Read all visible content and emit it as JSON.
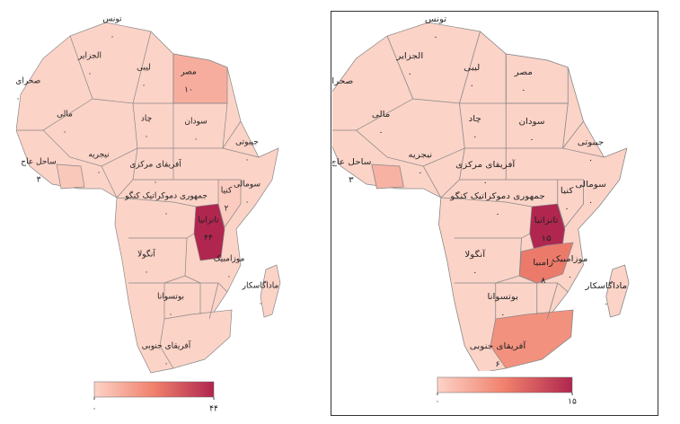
{
  "maps": [
    {
      "regions": [
        {
          "name": "تونس",
          "value": 0,
          "value_label": "۰"
        },
        {
          "name": "الجزایر",
          "value": 0,
          "value_label": "۰"
        },
        {
          "name": "لیبی",
          "value": 0,
          "value_label": "۰"
        },
        {
          "name": "مصر",
          "value": 10,
          "value_label": "۱۰"
        },
        {
          "name": "صحرای غربی",
          "value": 0,
          "value_label": "۰"
        },
        {
          "name": "مالی",
          "value": 0,
          "value_label": "۰"
        },
        {
          "name": "چاد",
          "value": 0,
          "value_label": "۰"
        },
        {
          "name": "سودان",
          "value": 0,
          "value_label": "۰"
        },
        {
          "name": "جیبوتی",
          "value": 0,
          "value_label": "۰"
        },
        {
          "name": "نیجریه",
          "value": 0,
          "value_label": "۰"
        },
        {
          "name": "ساحل عاج",
          "value": 3,
          "value_label": "۳"
        },
        {
          "name": "آفریقای مرکزی",
          "value": 0,
          "value_label": "۰"
        },
        {
          "name": "سومالی",
          "value": 0,
          "value_label": "۰"
        },
        {
          "name": "کنیا",
          "value": 2,
          "value_label": "۲"
        },
        {
          "name": "جمهوری دموکراتیک کنگو",
          "value": 0,
          "value_label": "۰"
        },
        {
          "name": "تانزانیا",
          "value": 44,
          "value_label": "۴۴"
        },
        {
          "name": "آنگولا",
          "value": 0,
          "value_label": "۰"
        },
        {
          "name": "موزامبیک",
          "value": 0,
          "value_label": "۰"
        },
        {
          "name": "ماداگاسکار",
          "value": 0,
          "value_label": "۰"
        },
        {
          "name": "بوتسوانا",
          "value": 0,
          "value_label": "۰"
        },
        {
          "name": "آفریقای جنوبی",
          "value": 0,
          "value_label": "۰"
        }
      ],
      "colorbar": {
        "range": [
          0,
          44
        ],
        "ticks": [
          {
            "value": 0,
            "label": "۰"
          },
          {
            "value": 44,
            "label": "۴۴"
          }
        ]
      }
    },
    {
      "regions": [
        {
          "name": "تونس",
          "value": 0,
          "value_label": "۰"
        },
        {
          "name": "الجزایر",
          "value": 0,
          "value_label": "۰"
        },
        {
          "name": "لیبی",
          "value": 0,
          "value_label": "۰"
        },
        {
          "name": "مصر",
          "value": 0,
          "value_label": "۰"
        },
        {
          "name": "صحرای غربی",
          "value": 0,
          "value_label": "۰"
        },
        {
          "name": "مالی",
          "value": 0,
          "value_label": "۰"
        },
        {
          "name": "چاد",
          "value": 0,
          "value_label": "۰"
        },
        {
          "name": "سودان",
          "value": 0,
          "value_label": "۰"
        },
        {
          "name": "جیبوتی",
          "value": 0,
          "value_label": "۰"
        },
        {
          "name": "نیجریه",
          "value": 0,
          "value_label": "۰"
        },
        {
          "name": "ساحل عاج",
          "value": 3,
          "value_label": "۳"
        },
        {
          "name": "آفریقای مرکزی",
          "value": 0,
          "value_label": "۰"
        },
        {
          "name": "سومالی",
          "value": 0,
          "value_label": "۰"
        },
        {
          "name": "کنیا",
          "value": 0,
          "value_label": "۰"
        },
        {
          "name": "جمهوری دموکراتیک کنگو",
          "value": 0,
          "value_label": "۰"
        },
        {
          "name": "تانزانیا",
          "value": 15,
          "value_label": "۱۵"
        },
        {
          "name": "آنگولا",
          "value": 0,
          "value_label": "۰"
        },
        {
          "name": "موزامبیک",
          "value": 0,
          "value_label": "۰"
        },
        {
          "name": "ماداگاسکار",
          "value": 0,
          "value_label": "۰"
        },
        {
          "name": "بوتسوانا",
          "value": 0,
          "value_label": "۰"
        },
        {
          "name": "آفریقای جنوبی",
          "value": 6,
          "value_label": "۶"
        },
        {
          "name": "زامبیا",
          "value": 8,
          "value_label": "۸"
        }
      ],
      "colorbar": {
        "range": [
          0,
          15
        ],
        "ticks": [
          {
            "value": 0,
            "label": "۰"
          },
          {
            "value": 15,
            "label": "۱۵"
          }
        ]
      }
    }
  ],
  "scale_colors": [
    "#fcd3c7",
    "#f0806c",
    "#b0264f"
  ]
}
